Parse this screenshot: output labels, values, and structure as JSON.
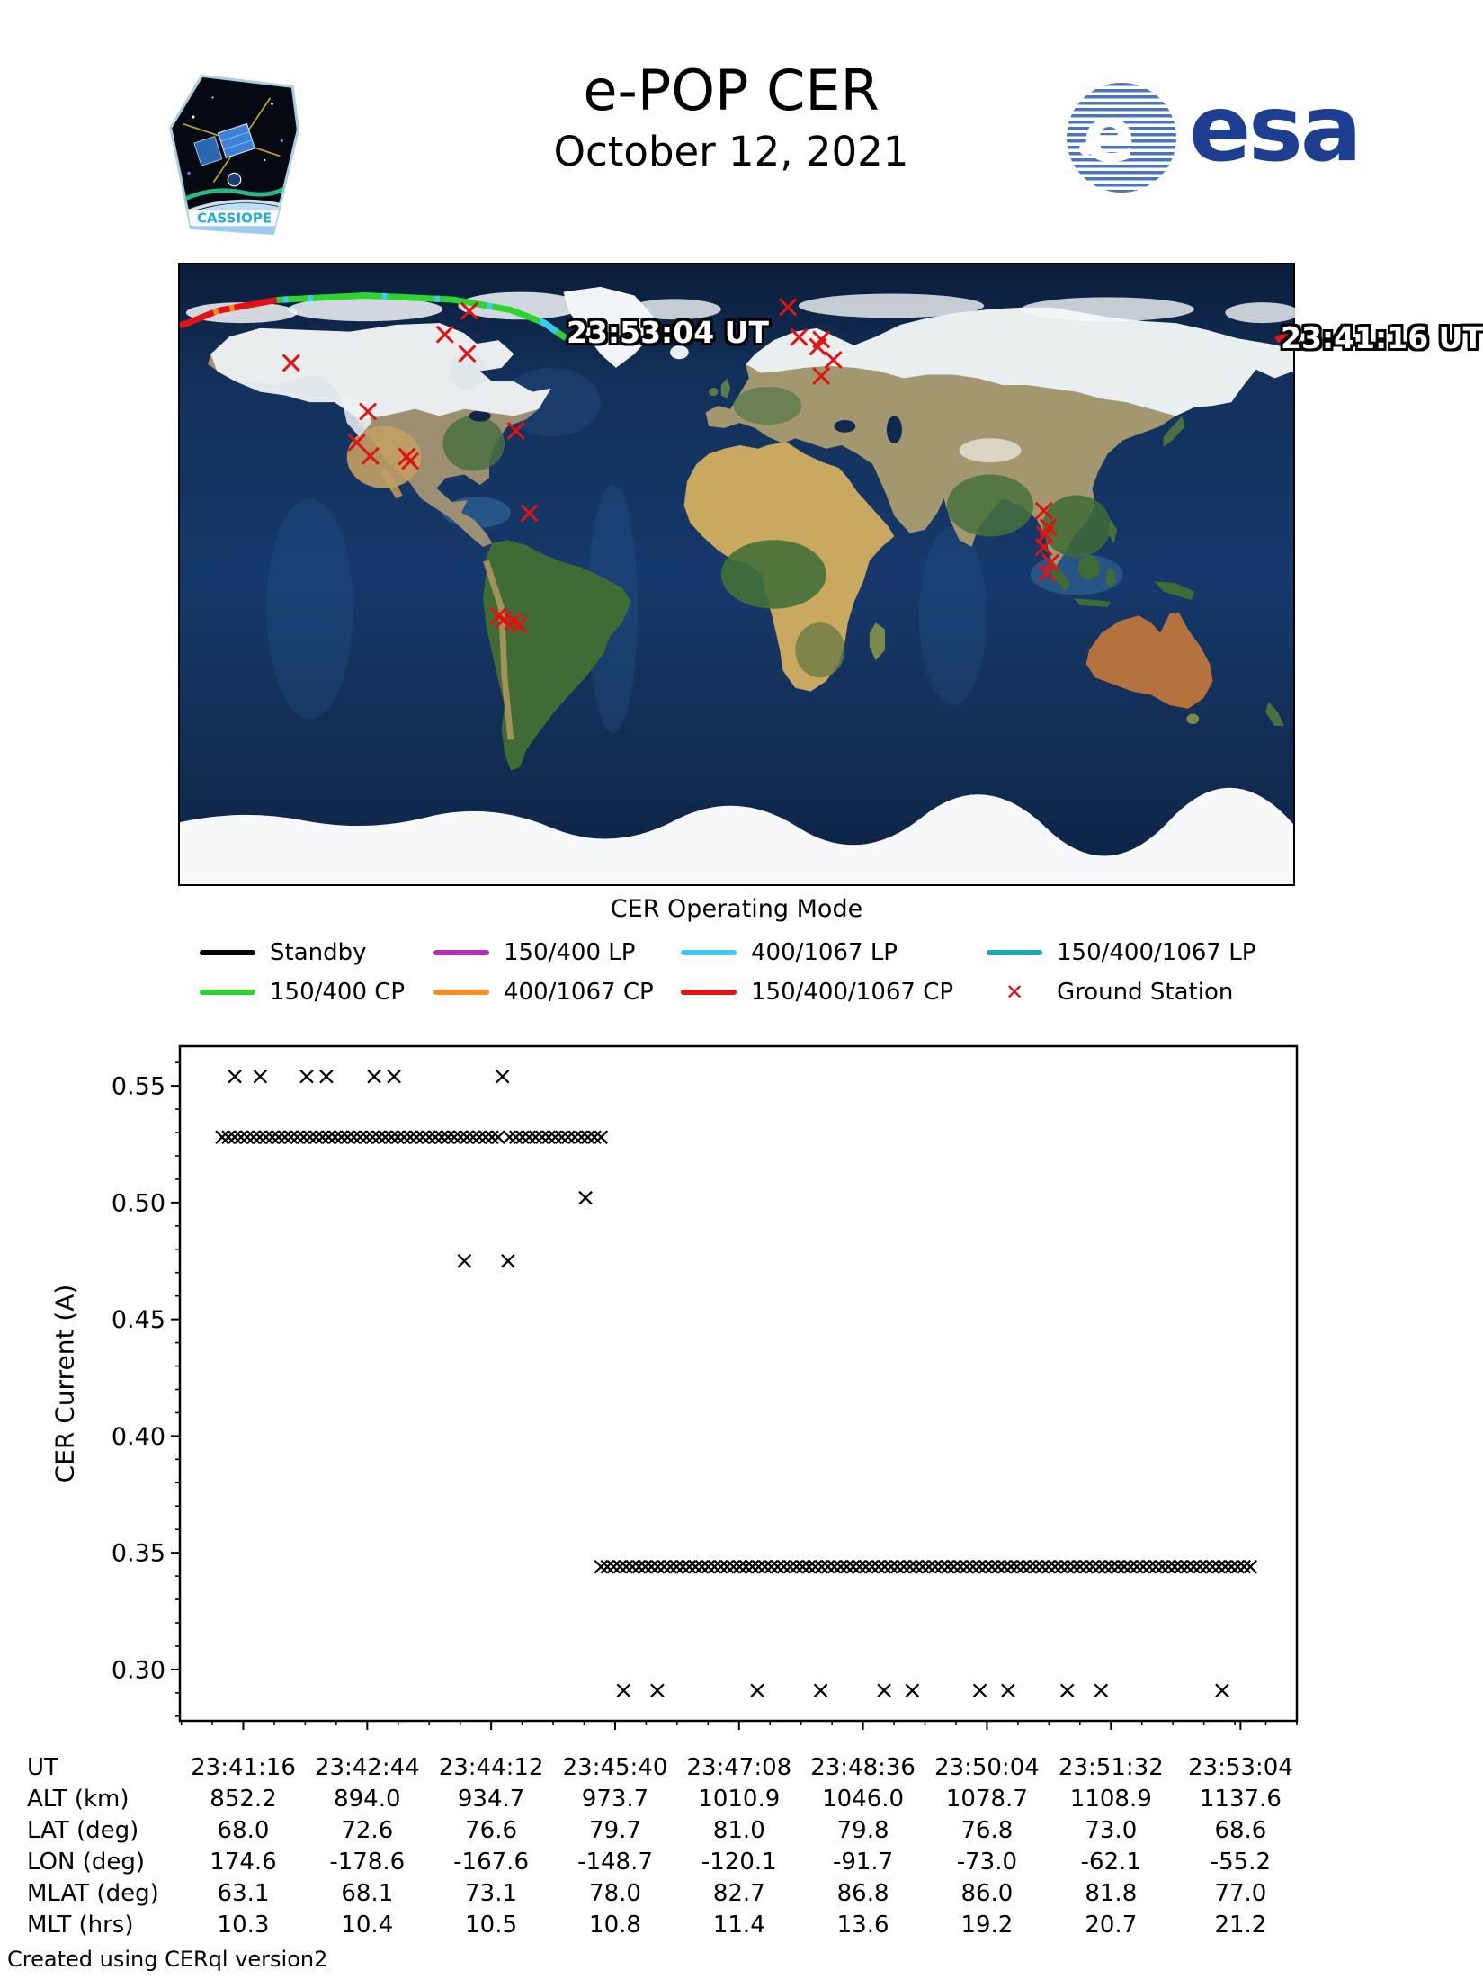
{
  "header": {
    "title": "e-POP CER",
    "date": "October 12, 2021",
    "cassiope_label": "CASSIOPE",
    "esa_label": "esa"
  },
  "map": {
    "start_time_label": "23:41:16 UT",
    "end_time_label": "23:53:04 UT",
    "station_color": "#e31212",
    "track": {
      "waypoints": [
        [
          -180,
          72.4
        ],
        [
          -178.6,
          72.6
        ],
        [
          -167.6,
          76.6
        ],
        [
          -148.7,
          79.7
        ],
        [
          -120.1,
          81.0
        ],
        [
          -91.7,
          79.8
        ],
        [
          -73.0,
          76.8
        ],
        [
          -62.1,
          73.0
        ],
        [
          -55.2,
          68.6
        ]
      ],
      "stub": [
        [
          174.6,
          68.0
        ],
        [
          180,
          71.2
        ]
      ],
      "stub_color": "#e31212",
      "segments": [
        {
          "from": -180,
          "to": -148.7,
          "color": "#e31212"
        },
        {
          "from": -148.7,
          "to": -55.2,
          "color": "#2fd32f"
        }
      ],
      "ticks": [
        {
          "from": -169.2,
          "to": -167.6,
          "color": "#ff8c1e"
        },
        {
          "from": -163.9,
          "to": -162.4,
          "color": "#ff8c1e"
        },
        {
          "from": -146.6,
          "to": -145.0,
          "color": "#3cc9f2"
        },
        {
          "from": -138.6,
          "to": -137.0,
          "color": "#3cc9f2"
        },
        {
          "from": -114.6,
          "to": -113.0,
          "color": "#3cc9f2"
        },
        {
          "from": -97.6,
          "to": -96.0,
          "color": "#3cc9f2"
        },
        {
          "from": -80.6,
          "to": -79.0,
          "color": "#3cc9f2"
        },
        {
          "from": -63.6,
          "to": -58.2,
          "color": "#3cc9f2"
        }
      ]
    },
    "ground_stations": [
      [
        16.6,
        77.6
      ],
      [
        20.2,
        68.9
      ],
      [
        27.4,
        68.2
      ],
      [
        26.3,
        66.1
      ],
      [
        31.3,
        62.3
      ],
      [
        27.4,
        57.6
      ],
      [
        -86.4,
        76.5
      ],
      [
        -94.3,
        69.7
      ],
      [
        -87.1,
        64.1
      ],
      [
        -144.0,
        61.4
      ],
      [
        -119.2,
        47.3
      ],
      [
        -122.8,
        38.3
      ],
      [
        -118.4,
        34.4
      ],
      [
        -106.6,
        34.2
      ],
      [
        -105.5,
        32.9
      ],
      [
        -71.3,
        41.7
      ],
      [
        -67.0,
        17.8
      ],
      [
        -77.0,
        -12.1
      ],
      [
        -75.2,
        -13.1
      ],
      [
        -72.3,
        -13.7
      ],
      [
        -70.4,
        -14.6
      ],
      [
        99.4,
        18.5
      ],
      [
        100.8,
        13.7
      ],
      [
        99.7,
        11.5
      ],
      [
        99.4,
        7.9
      ],
      [
        101.5,
        3.4
      ],
      [
        100.4,
        0.4
      ]
    ]
  },
  "legend": {
    "title": "CER Operating Mode",
    "items": [
      {
        "label": "Standby",
        "color": "#000000",
        "type": "line",
        "col": 0,
        "row": 0
      },
      {
        "label": "150/400 LP",
        "color": "#b92cb9",
        "type": "line",
        "col": 1,
        "row": 0
      },
      {
        "label": "400/1067 LP",
        "color": "#3cc9f2",
        "type": "line",
        "col": 2,
        "row": 0
      },
      {
        "label": "150/400/1067 LP",
        "color": "#1ca9a9",
        "type": "line",
        "col": 3,
        "row": 0
      },
      {
        "label": "150/400 CP",
        "color": "#2fd32f",
        "type": "line",
        "col": 0,
        "row": 1
      },
      {
        "label": "400/1067 CP",
        "color": "#ff8c1e",
        "type": "line",
        "col": 1,
        "row": 1
      },
      {
        "label": "150/400/1067 CP",
        "color": "#e31212",
        "type": "line",
        "col": 2,
        "row": 1
      },
      {
        "label": "Ground Station",
        "color": "#e31212",
        "type": "marker",
        "col": 3,
        "row": 1,
        "marker_glyph": "✕"
      }
    ]
  },
  "chart_data": {
    "type": "scatter",
    "title": "",
    "xlabel": "UT",
    "ylabel": "CER Current (A)",
    "marker": "x",
    "marker_color": "#000000",
    "ylim": [
      0.278,
      0.567
    ],
    "y_major_ticks": [
      0.3,
      0.35,
      0.4,
      0.45,
      0.5,
      0.55
    ],
    "y_major_tick_labels": [
      "0.30",
      "0.35",
      "0.40",
      "0.45",
      "0.50",
      "0.55"
    ],
    "y_minor_step": 0.01,
    "x_axis": {
      "reference_time": "23:41:16",
      "start_offset_s": -45,
      "end_offset_s": 748,
      "major_tick_offsets_s": [
        0,
        88,
        176,
        264,
        352,
        440,
        528,
        616,
        708
      ],
      "major_tick_labels": [
        "23:41:16",
        "23:42:44",
        "23:44:12",
        "23:45:40",
        "23:47:08",
        "23:48:36",
        "23:50:04",
        "23:51:32",
        "23:53:04"
      ],
      "minor_step_s": 22
    },
    "dense_rows": [
      {
        "y": 0.528,
        "t_start_s": -15,
        "t_end_s": 181,
        "count": 45
      },
      {
        "y": 0.528,
        "t_start_s": 189,
        "t_end_s": 254,
        "count": 15
      },
      {
        "y": 0.344,
        "t_start_s": 254,
        "t_end_s": 715,
        "count": 104
      }
    ],
    "point_clusters": [
      {
        "y": 0.554,
        "t_s": [
          -6,
          12,
          45,
          59,
          93,
          107,
          184
        ]
      },
      {
        "y": 0.502,
        "t_s": [
          243
        ]
      },
      {
        "y": 0.475,
        "t_s": [
          157,
          188
        ]
      },
      {
        "y": 0.291,
        "t_s": [
          270,
          294,
          365,
          410,
          455,
          475,
          523,
          543,
          585,
          609,
          695
        ]
      }
    ]
  },
  "table": {
    "row_labels": [
      "UT",
      "ALT (km)",
      "LAT (deg)",
      "LON (deg)",
      "MLAT (deg)",
      "MLT (hrs)"
    ],
    "columns": [
      [
        "23:41:16",
        "852.2",
        "68.0",
        "174.6",
        "63.1",
        "10.3"
      ],
      [
        "23:42:44",
        "894.0",
        "72.6",
        "-178.6",
        "68.1",
        "10.4"
      ],
      [
        "23:44:12",
        "934.7",
        "76.6",
        "-167.6",
        "73.1",
        "10.5"
      ],
      [
        "23:45:40",
        "973.7",
        "79.7",
        "-148.7",
        "78.0",
        "10.8"
      ],
      [
        "23:47:08",
        "1010.9",
        "81.0",
        "-120.1",
        "82.7",
        "11.4"
      ],
      [
        "23:48:36",
        "1046.0",
        "79.8",
        "-91.7",
        "86.8",
        "13.6"
      ],
      [
        "23:50:04",
        "1078.7",
        "76.8",
        "-73.0",
        "86.0",
        "19.2"
      ],
      [
        "23:51:32",
        "1108.9",
        "73.0",
        "-62.1",
        "81.8",
        "20.7"
      ],
      [
        "23:53:04",
        "1137.6",
        "68.6",
        "-55.2",
        "77.0",
        "21.2"
      ]
    ]
  },
  "footer": {
    "credit": "Created using CERql version2"
  }
}
